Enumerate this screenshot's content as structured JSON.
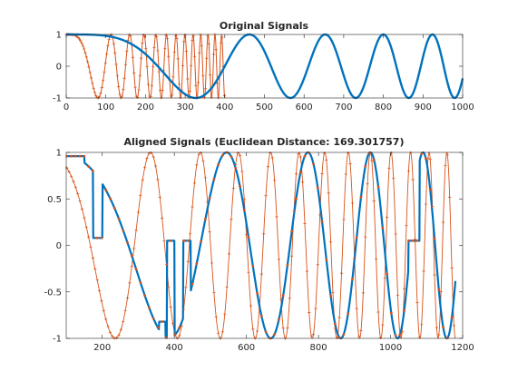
{
  "colors": {
    "signal1": "#0072BD",
    "signal2": "#D95319",
    "axes": "#262626",
    "background": "#ffffff"
  },
  "chart_data": [
    {
      "type": "line",
      "title": "Original Signals",
      "xlabel": "",
      "ylabel": "",
      "xlim": [
        0,
        1000
      ],
      "ylim": [
        -1,
        1
      ],
      "xticks": [
        0,
        100,
        200,
        300,
        400,
        500,
        600,
        700,
        800,
        900,
        1000
      ],
      "yticks": [
        -1,
        0,
        1
      ],
      "series": [
        {
          "color": "#0072BD",
          "function": "cos(2*pi*(t/400)^2 * 0.75), t = 0..1000",
          "markers": "none"
        },
        {
          "color": "#D95319",
          "function": "cos(2*pi*(t/400)^2 * 12.5), t = 0..400",
          "markers": "plus"
        }
      ],
      "grid": false,
      "legend": "none"
    },
    {
      "type": "line",
      "title": "Aligned Signals (Euclidean Distance: 169.301757)",
      "xlabel": "",
      "ylabel": "",
      "xlim": [
        100,
        1200
      ],
      "ylim": [
        -1,
        1
      ],
      "xticks": [
        200,
        400,
        600,
        800,
        1000,
        1200
      ],
      "yticks": [
        -1,
        -0.5,
        0,
        0.5,
        1
      ],
      "series": [
        {
          "color": "#0072BD",
          "description": "warped copy of the blue signal",
          "markers": "dot"
        },
        {
          "color": "#D95319",
          "description": "warped copy of the orange signal",
          "markers": "plus"
        }
      ],
      "grid": false,
      "legend": "none"
    }
  ]
}
